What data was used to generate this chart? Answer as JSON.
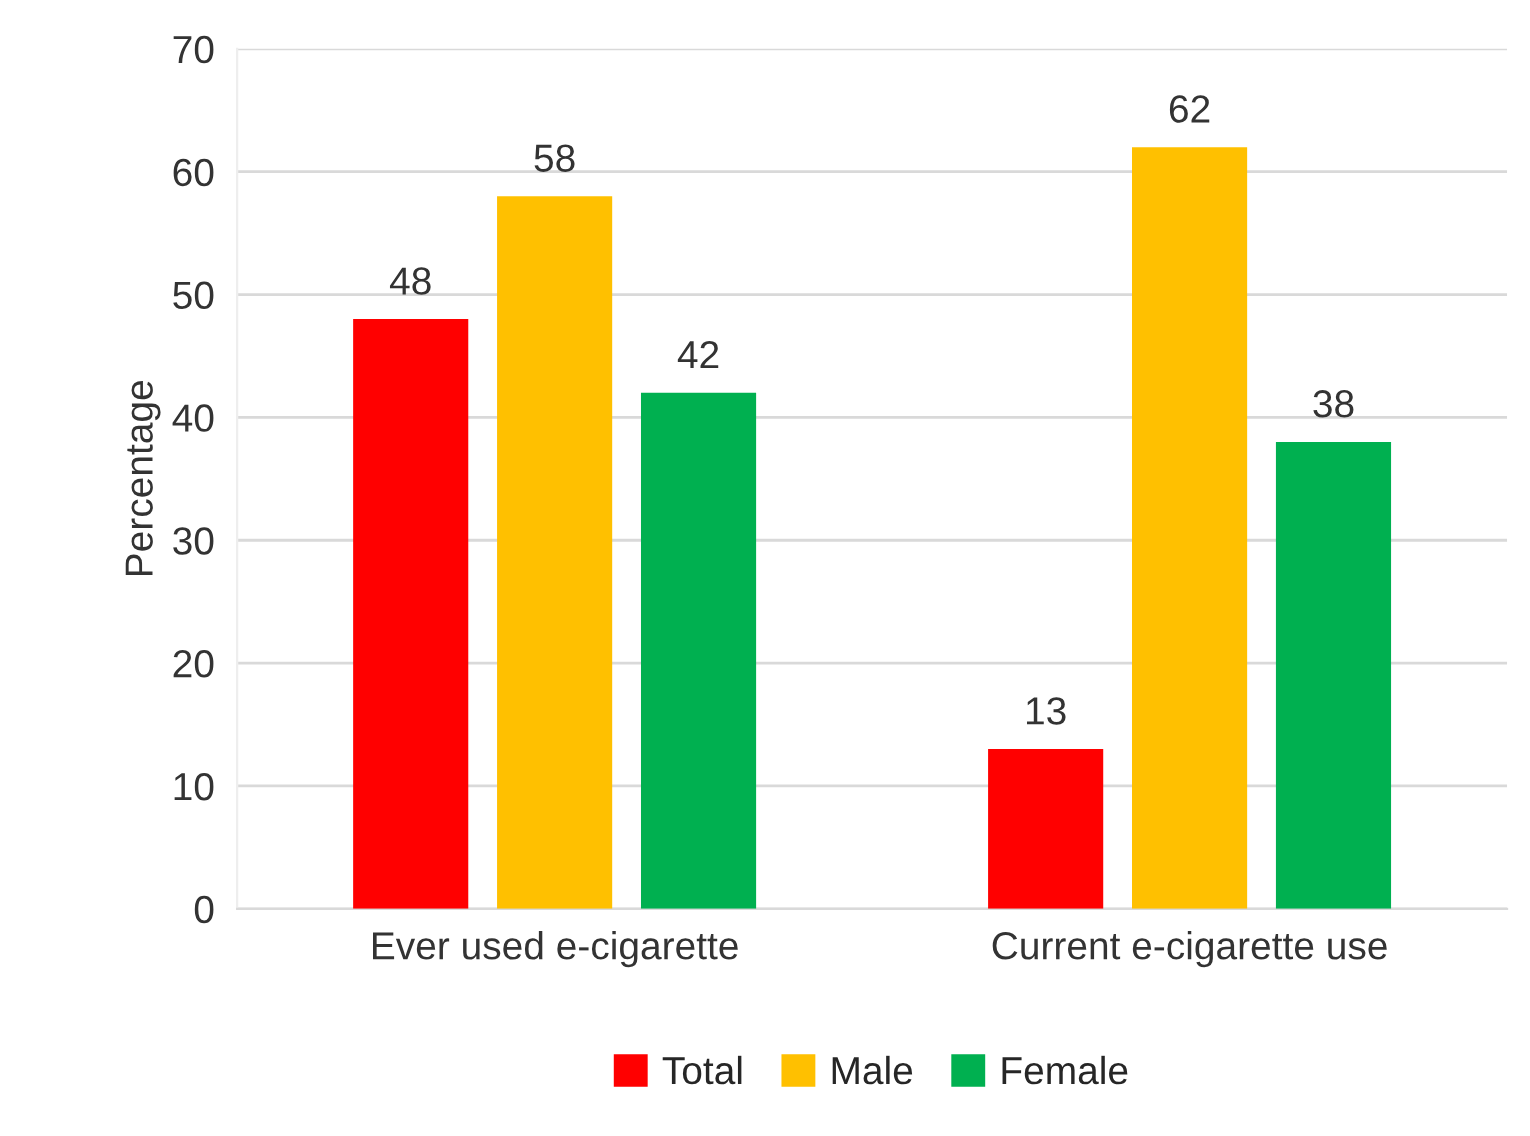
{
  "chart_data": {
    "type": "bar",
    "ylabel": "Percentage",
    "categories": [
      "Ever used e-cigarette",
      "Current e-cigarette use"
    ],
    "series": [
      {
        "name": "Total",
        "color": "#ff0000",
        "values": [
          48,
          13
        ]
      },
      {
        "name": "Male",
        "color": "#ffc000",
        "values": [
          58,
          62
        ]
      },
      {
        "name": "Female",
        "color": "#00b050",
        "values": [
          42,
          38
        ]
      }
    ],
    "ylim": [
      0,
      70
    ],
    "yticks": [
      0,
      10,
      20,
      30,
      40,
      50,
      60,
      70
    ],
    "grid": "y",
    "legend": "bottom",
    "data_labels": true
  }
}
